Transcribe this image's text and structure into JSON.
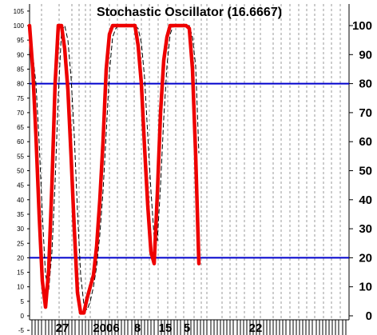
{
  "chart_data": {
    "type": "line",
    "title": "Stochastic Oscillator (16.6667)",
    "ylim": [
      -10,
      110
    ],
    "left_ticks": [
      "-5",
      "0",
      "5",
      "10",
      "15",
      "20",
      "25",
      "30",
      "35",
      "40",
      "45",
      "50",
      "55",
      "60",
      "65",
      "70",
      "75",
      "80",
      "85",
      "90",
      "95",
      "100",
      "105"
    ],
    "right_ticks": [
      "0",
      "10",
      "20",
      "30",
      "40",
      "50",
      "60",
      "70",
      "80",
      "90",
      "100"
    ],
    "x_tick_labels": [
      "27",
      "2006",
      "8",
      "15",
      "5",
      "22"
    ],
    "reference_lines": [
      {
        "value": 80,
        "color": "#0000cc"
      },
      {
        "value": 20,
        "color": "#0000cc"
      }
    ],
    "series": [
      {
        "style": "solid-thick",
        "color": "#ee0000",
        "values": [
          100,
          85,
          62,
          35,
          12,
          3,
          16,
          45,
          80,
          100,
          100,
          92,
          78,
          55,
          30,
          8,
          1,
          1,
          6,
          10,
          14,
          24,
          40,
          60,
          85,
          97,
          100,
          100,
          100,
          100,
          100,
          100,
          100,
          100,
          93,
          80,
          58,
          38,
          22,
          18,
          42,
          70,
          88,
          96,
          100,
          100,
          100,
          100,
          100,
          100,
          99,
          85,
          55,
          18
        ]
      },
      {
        "style": "dashed-thin",
        "color": "#000000",
        "values": [
          93,
          90,
          80,
          60,
          35,
          14,
          9,
          22,
          46,
          76,
          98,
          100,
          95,
          82,
          62,
          36,
          14,
          4,
          2,
          5,
          10,
          17,
          28,
          43,
          63,
          84,
          96,
          99,
          100,
          100,
          100,
          100,
          100,
          100,
          99,
          94,
          82,
          62,
          43,
          27,
          26,
          45,
          68,
          86,
          97,
          100,
          100,
          100,
          100,
          100,
          100,
          96,
          86,
          56
        ]
      }
    ]
  }
}
